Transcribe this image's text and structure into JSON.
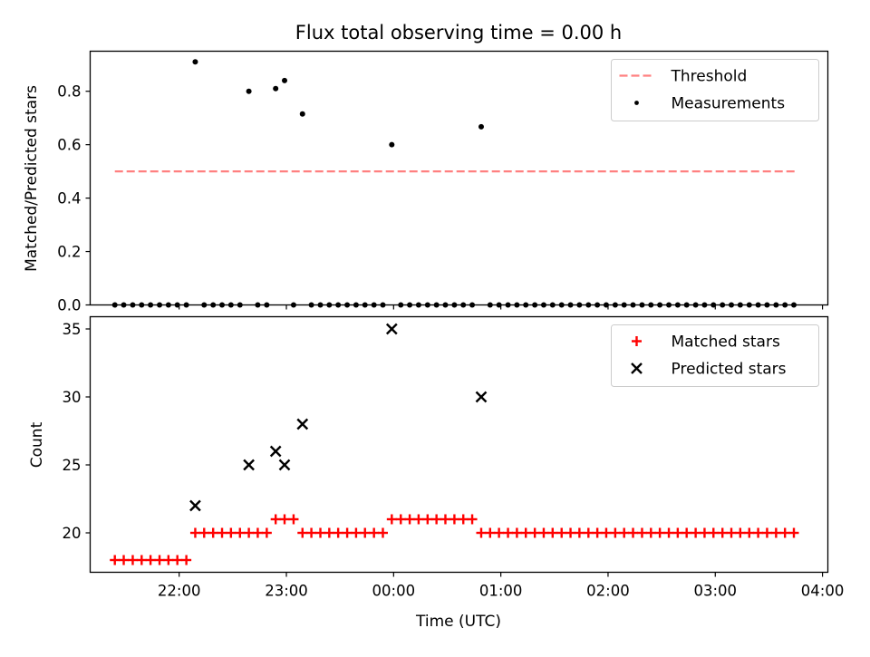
{
  "figure_title": "Flux total observing time = 0.00 h",
  "colors": {
    "threshold": "#ff8080",
    "measurements": "#000000",
    "matched": "#ff0000",
    "predicted": "#000000"
  },
  "chart_data": [
    {
      "type": "scatter",
      "title": "Flux total observing time = 0.00 h",
      "xlabel": "",
      "ylabel": "Matched/Predicted stars",
      "x_unit": "hours since 00:00 UTC (day boundary)",
      "xlim": [
        -2.83,
        4.05
      ],
      "ylim": [
        0.0,
        0.95
      ],
      "yticks": [
        0.0,
        0.2,
        0.4,
        0.6,
        0.8
      ],
      "ytick_labels": [
        "0.0",
        "0.2",
        "0.4",
        "0.6",
        "0.8"
      ],
      "xticks": [
        -2,
        -1,
        0,
        1,
        2,
        3,
        4
      ],
      "show_xtick_labels": false,
      "grid": false,
      "legend_position": "top-right",
      "threshold": {
        "name": "Threshold",
        "value": 0.5,
        "x_range": [
          -2.6,
          3.75
        ],
        "style": "dashed"
      },
      "series": [
        {
          "name": "Measurements",
          "marker": "dot",
          "points": [
            [
              -2.6,
              0
            ],
            [
              -2.517,
              0
            ],
            [
              -2.433,
              0
            ],
            [
              -2.35,
              0
            ],
            [
              -2.267,
              0
            ],
            [
              -2.183,
              0
            ],
            [
              -2.1,
              0
            ],
            [
              -2.017,
              0
            ],
            [
              -1.933,
              0
            ],
            [
              -1.85,
              0.91
            ],
            [
              -1.767,
              0
            ],
            [
              -1.683,
              0
            ],
            [
              -1.6,
              0
            ],
            [
              -1.517,
              0
            ],
            [
              -1.433,
              0
            ],
            [
              -1.35,
              0.8
            ],
            [
              -1.267,
              0
            ],
            [
              -1.183,
              0
            ],
            [
              -1.1,
              0.81
            ],
            [
              -1.017,
              0.84
            ],
            [
              -0.933,
              0
            ],
            [
              -0.85,
              0.715
            ],
            [
              -0.767,
              0
            ],
            [
              -0.683,
              0
            ],
            [
              -0.6,
              0
            ],
            [
              -0.517,
              0
            ],
            [
              -0.433,
              0
            ],
            [
              -0.35,
              0
            ],
            [
              -0.267,
              0
            ],
            [
              -0.183,
              0
            ],
            [
              -0.1,
              0
            ],
            [
              -0.017,
              0.6
            ],
            [
              0.067,
              0
            ],
            [
              0.15,
              0
            ],
            [
              0.233,
              0
            ],
            [
              0.317,
              0
            ],
            [
              0.4,
              0
            ],
            [
              0.483,
              0
            ],
            [
              0.567,
              0
            ],
            [
              0.65,
              0
            ],
            [
              0.733,
              0
            ],
            [
              0.817,
              0.667
            ],
            [
              0.9,
              0
            ],
            [
              0.983,
              0
            ],
            [
              1.067,
              0
            ],
            [
              1.15,
              0
            ],
            [
              1.233,
              0
            ],
            [
              1.317,
              0
            ],
            [
              1.4,
              0
            ],
            [
              1.483,
              0
            ],
            [
              1.567,
              0
            ],
            [
              1.65,
              0
            ],
            [
              1.733,
              0
            ],
            [
              1.817,
              0
            ],
            [
              1.9,
              0
            ],
            [
              1.983,
              0
            ],
            [
              2.067,
              0
            ],
            [
              2.15,
              0
            ],
            [
              2.233,
              0
            ],
            [
              2.317,
              0
            ],
            [
              2.4,
              0
            ],
            [
              2.483,
              0
            ],
            [
              2.567,
              0
            ],
            [
              2.65,
              0
            ],
            [
              2.733,
              0
            ],
            [
              2.817,
              0
            ],
            [
              2.9,
              0
            ],
            [
              2.983,
              0
            ],
            [
              3.067,
              0
            ],
            [
              3.15,
              0
            ],
            [
              3.233,
              0
            ],
            [
              3.317,
              0
            ],
            [
              3.4,
              0
            ],
            [
              3.483,
              0
            ],
            [
              3.567,
              0
            ],
            [
              3.65,
              0
            ],
            [
              3.733,
              0
            ]
          ]
        }
      ]
    },
    {
      "type": "scatter",
      "title": "",
      "xlabel": "Time (UTC)",
      "ylabel": "Count",
      "x_unit": "hours since 00:00 UTC (day boundary)",
      "xlim": [
        -2.83,
        4.05
      ],
      "ylim": [
        17.1,
        35.9
      ],
      "yticks": [
        20,
        25,
        30,
        35
      ],
      "ytick_labels": [
        "20",
        "25",
        "30",
        "35"
      ],
      "xticks": [
        -2,
        -1,
        0,
        1,
        2,
        3,
        4
      ],
      "xtick_labels": [
        "22:00",
        "23:00",
        "00:00",
        "01:00",
        "02:00",
        "03:00",
        "04:00"
      ],
      "grid": false,
      "legend_position": "top-right",
      "series": [
        {
          "name": "Matched stars",
          "marker": "plus",
          "points": [
            [
              -2.6,
              18
            ],
            [
              -2.517,
              18
            ],
            [
              -2.433,
              18
            ],
            [
              -2.35,
              18
            ],
            [
              -2.267,
              18
            ],
            [
              -2.183,
              18
            ],
            [
              -2.1,
              18
            ],
            [
              -2.017,
              18
            ],
            [
              -1.933,
              18
            ],
            [
              -1.85,
              20
            ],
            [
              -1.767,
              20
            ],
            [
              -1.683,
              20
            ],
            [
              -1.6,
              20
            ],
            [
              -1.517,
              20
            ],
            [
              -1.433,
              20
            ],
            [
              -1.35,
              20
            ],
            [
              -1.267,
              20
            ],
            [
              -1.183,
              20
            ],
            [
              -1.1,
              21
            ],
            [
              -1.017,
              21
            ],
            [
              -0.933,
              21
            ],
            [
              -0.85,
              20
            ],
            [
              -0.767,
              20
            ],
            [
              -0.683,
              20
            ],
            [
              -0.6,
              20
            ],
            [
              -0.517,
              20
            ],
            [
              -0.433,
              20
            ],
            [
              -0.35,
              20
            ],
            [
              -0.267,
              20
            ],
            [
              -0.183,
              20
            ],
            [
              -0.1,
              20
            ],
            [
              -0.017,
              21
            ],
            [
              0.067,
              21
            ],
            [
              0.15,
              21
            ],
            [
              0.233,
              21
            ],
            [
              0.317,
              21
            ],
            [
              0.4,
              21
            ],
            [
              0.483,
              21
            ],
            [
              0.567,
              21
            ],
            [
              0.65,
              21
            ],
            [
              0.733,
              21
            ],
            [
              0.817,
              20
            ],
            [
              0.9,
              20
            ],
            [
              0.983,
              20
            ],
            [
              1.067,
              20
            ],
            [
              1.15,
              20
            ],
            [
              1.233,
              20
            ],
            [
              1.317,
              20
            ],
            [
              1.4,
              20
            ],
            [
              1.483,
              20
            ],
            [
              1.567,
              20
            ],
            [
              1.65,
              20
            ],
            [
              1.733,
              20
            ],
            [
              1.817,
              20
            ],
            [
              1.9,
              20
            ],
            [
              1.983,
              20
            ],
            [
              2.067,
              20
            ],
            [
              2.15,
              20
            ],
            [
              2.233,
              20
            ],
            [
              2.317,
              20
            ],
            [
              2.4,
              20
            ],
            [
              2.483,
              20
            ],
            [
              2.567,
              20
            ],
            [
              2.65,
              20
            ],
            [
              2.733,
              20
            ],
            [
              2.817,
              20
            ],
            [
              2.9,
              20
            ],
            [
              2.983,
              20
            ],
            [
              3.067,
              20
            ],
            [
              3.15,
              20
            ],
            [
              3.233,
              20
            ],
            [
              3.317,
              20
            ],
            [
              3.4,
              20
            ],
            [
              3.483,
              20
            ],
            [
              3.567,
              20
            ],
            [
              3.65,
              20
            ],
            [
              3.733,
              20
            ]
          ]
        },
        {
          "name": "Predicted stars",
          "marker": "x",
          "points": [
            [
              -1.85,
              22
            ],
            [
              -1.35,
              25
            ],
            [
              -1.1,
              26
            ],
            [
              -1.017,
              25
            ],
            [
              -0.85,
              28
            ],
            [
              -0.017,
              35
            ],
            [
              0.817,
              30
            ]
          ]
        }
      ]
    }
  ]
}
